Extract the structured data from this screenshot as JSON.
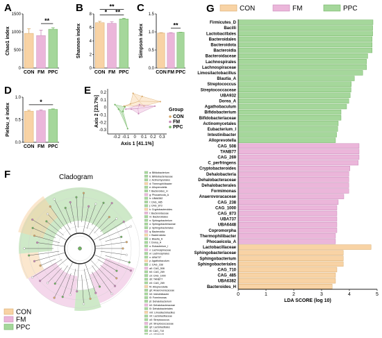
{
  "colors": {
    "CON": "#f8d3a5",
    "FM": "#ebb6da",
    "PPC": "#a5d79b",
    "CON_edge": "#d8a96a",
    "FM_edge": "#c889b8",
    "PPC_edge": "#71b462"
  },
  "panel_letters": [
    "A",
    "B",
    "C",
    "D",
    "E",
    "F",
    "G"
  ],
  "legend": {
    "title": "",
    "groups": [
      "CON",
      "FM",
      "PPC"
    ]
  },
  "cladogram_title": "Cladogram",
  "cladogram_list": [
    "a: Bifidobacterium",
    "b: Bifidobacteriaceae",
    "c: Actinomycetales",
    "d: Thermophilibacter",
    "e: Alloprevotella",
    "f: Bacteroides_H",
    "g: Phocaeicola_A",
    "h: UBA6382",
    "i: CAG_485",
    "j: CAG_873",
    "k: Cryptobacteroides",
    "l: Bacteroidaceae",
    "m: Bacteroidales",
    "n: Sphingobacterium",
    "o: Sphingobacteriaceae",
    "p: Sphingobacteriales",
    "q: Bacteroidia",
    "r: Bacteroidota",
    "s: Blautia_A",
    "t: Dorea_A",
    "u: Eubacterium_I",
    "v: Lachnospiraceae",
    "w: Lachnospirales",
    "x: UBA737",
    "y: Agathobaculum",
    "z: CAG_238",
    "a0: CAG_508",
    "b0: CAG_269",
    "c0: CAG_1000",
    "d0: TANB77",
    "e0: CAG_269",
    "f0: Alloprevotella",
    "g0: Anaerovoracaceae",
    "h0: Intestinibacter",
    "i0: Formimonas",
    "j0: Dehalobacterium",
    "k0: Dehalobacteraceae",
    "l0: Dehalobacteriales",
    "m0: Limosilactobacillus",
    "n0: Lactobacillaceae",
    "o0: Streptococcus",
    "p0: Streptococcaceae",
    "q0: Lactobacillales",
    "r0: CAG_710",
    "s0: UBA6448",
    "t0: Bacilli",
    "u0: Firmicutes_D"
  ],
  "chart_data": [
    {
      "panel": "A",
      "type": "bar",
      "categories": [
        "CON",
        "FM",
        "PPC"
      ],
      "values": [
        960,
        900,
        1075
      ],
      "errors": [
        130,
        150,
        40
      ],
      "ylabel": "Chao1 index",
      "ylim": [
        0,
        1500
      ],
      "yticks": [
        0,
        500,
        1000,
        1500
      ],
      "significance": [
        {
          "between": [
            "FM",
            "PPC"
          ],
          "label": "**"
        }
      ]
    },
    {
      "panel": "B",
      "type": "bar",
      "categories": [
        "CON",
        "FM",
        "PPC"
      ],
      "values": [
        6.7,
        6.6,
        7.25
      ],
      "errors": [
        0.2,
        0.25,
        0.1
      ],
      "ylabel": "Shannon index",
      "ylim": [
        0,
        8
      ],
      "yticks": [
        0,
        2,
        4,
        6,
        8
      ],
      "significance": [
        {
          "between": [
            "CON",
            "PPC"
          ],
          "label": "**"
        },
        {
          "between": [
            "CON",
            "FM"
          ],
          "label": "*"
        },
        {
          "between": [
            "FM",
            "PPC"
          ],
          "label": "**"
        }
      ]
    },
    {
      "panel": "C",
      "type": "bar",
      "categories": [
        "CON",
        "FM",
        "PPC"
      ],
      "values": [
        0.97,
        0.97,
        0.99
      ],
      "errors": [
        0.01,
        0.01,
        0.003
      ],
      "ylabel": "Simpson index",
      "ylim": [
        0,
        1.5
      ],
      "yticks": [
        0,
        0.5,
        1.0,
        1.5
      ],
      "significance": [
        {
          "between": [
            "FM",
            "PPC"
          ],
          "label": "**"
        }
      ]
    },
    {
      "panel": "D",
      "type": "bar",
      "categories": [
        "CON",
        "FM",
        "PPC"
      ],
      "values": [
        0.69,
        0.7,
        0.73
      ],
      "errors": [
        0.02,
        0.02,
        0.01
      ],
      "ylabel": "Pielou_e index",
      "ylim": [
        0,
        1.0
      ],
      "yticks": [
        0,
        0.5,
        1.0
      ],
      "significance": [
        {
          "between": [
            "CON",
            "PPC"
          ],
          "label": "*"
        }
      ]
    },
    {
      "panel": "E",
      "type": "scatter",
      "xlabel": "Axis 1 [41.1%]",
      "ylabel": "Axis 2 [23.7%]",
      "xticks": [
        -0.2,
        -0.1,
        0.0,
        0.1,
        0.2,
        0.3
      ],
      "yticks": [
        -0.3,
        -0.2,
        -0.1,
        0.0,
        0.1,
        0.2
      ],
      "xlim": [
        -0.3,
        0.35
      ],
      "ylim": [
        -0.35,
        0.25
      ],
      "legend_title": "Group",
      "series": [
        {
          "name": "CON",
          "points": [
            [
              -0.12,
              0.02
            ],
            [
              -0.02,
              0.19
            ],
            [
              0.08,
              0.15
            ],
            [
              0.28,
              0.08
            ],
            [
              0.1,
              0.02
            ],
            [
              -0.05,
              0.05
            ]
          ]
        },
        {
          "name": "FM",
          "points": [
            [
              -0.1,
              -0.02
            ],
            [
              0.05,
              0.04
            ],
            [
              0.22,
              0.02
            ],
            [
              0.04,
              -0.08
            ],
            [
              -0.04,
              -0.02
            ]
          ]
        },
        {
          "name": "PPC",
          "points": [
            [
              -0.22,
              0.04
            ],
            [
              -0.13,
              -0.05
            ],
            [
              -0.08,
              -0.28
            ],
            [
              -0.18,
              -0.02
            ],
            [
              -0.11,
              0.01
            ]
          ]
        }
      ]
    },
    {
      "panel": "G",
      "type": "bar",
      "orientation": "horizontal",
      "xlabel": "LDA SCORE (log 10)",
      "xlim": [
        0,
        5
      ],
      "xticks": [
        0,
        1,
        2,
        3,
        4,
        5
      ],
      "series": [
        {
          "name": "PPC",
          "features": [
            "Firmicutes_D",
            "Bacilli",
            "Lactobacillales",
            "Bacteroidales",
            "Bacteroidota",
            "Bacteroidia",
            "Bacteroidaceae",
            "Lachnospirales",
            "Lachnospiraceae",
            "Limosilactobacillus",
            "Blautia_A",
            "Streptococcus",
            "Streptococcaceae",
            "UBA932",
            "Dorea_A",
            "Agathobaculum",
            "Bifidobacterium",
            "Bifidobacteriaceae",
            "Actinomycetales",
            "Eubacterium_I",
            "Intestinibacter",
            "Alloprevotella"
          ],
          "values": [
            4.85,
            4.84,
            4.84,
            4.82,
            4.82,
            4.82,
            4.66,
            4.62,
            4.62,
            4.48,
            4.18,
            4.07,
            4.06,
            4.03,
            3.98,
            3.9,
            3.7,
            3.7,
            3.6,
            3.58,
            3.54,
            3.5
          ]
        },
        {
          "name": "FM",
          "features": [
            "CAG_508",
            "TANB77",
            "CAG_269",
            "C_perfringens",
            "Cryptobacteroides",
            "Dehalobacteria",
            "Dehalobacteraceae",
            "Dehalobacterales",
            "Formimonas",
            "Anaerovoracaceae",
            "CAG_238",
            "CAG_1000",
            "CAG_873",
            "UBA737",
            "UBA6448",
            "Copromorpha",
            "Thermophilibacter",
            "Phocaeicola_A"
          ],
          "values": [
            4.35,
            4.35,
            4.35,
            4.32,
            4.02,
            3.98,
            3.98,
            3.98,
            3.98,
            3.8,
            3.6,
            3.55,
            3.55,
            3.55,
            3.55,
            3.55,
            3.5,
            3.5
          ]
        },
        {
          "name": "CON",
          "features": [
            "Lactobacillaceae",
            "Sphingobacteriaceae",
            "Sphingobacterium",
            "Sphingobacteriales",
            "CAG_710",
            "CAG_485",
            "UBA6382",
            "Bacteroides_H"
          ],
          "values": [
            4.78,
            3.78,
            3.78,
            3.78,
            3.55,
            3.5,
            3.5,
            3.38
          ]
        }
      ]
    }
  ]
}
